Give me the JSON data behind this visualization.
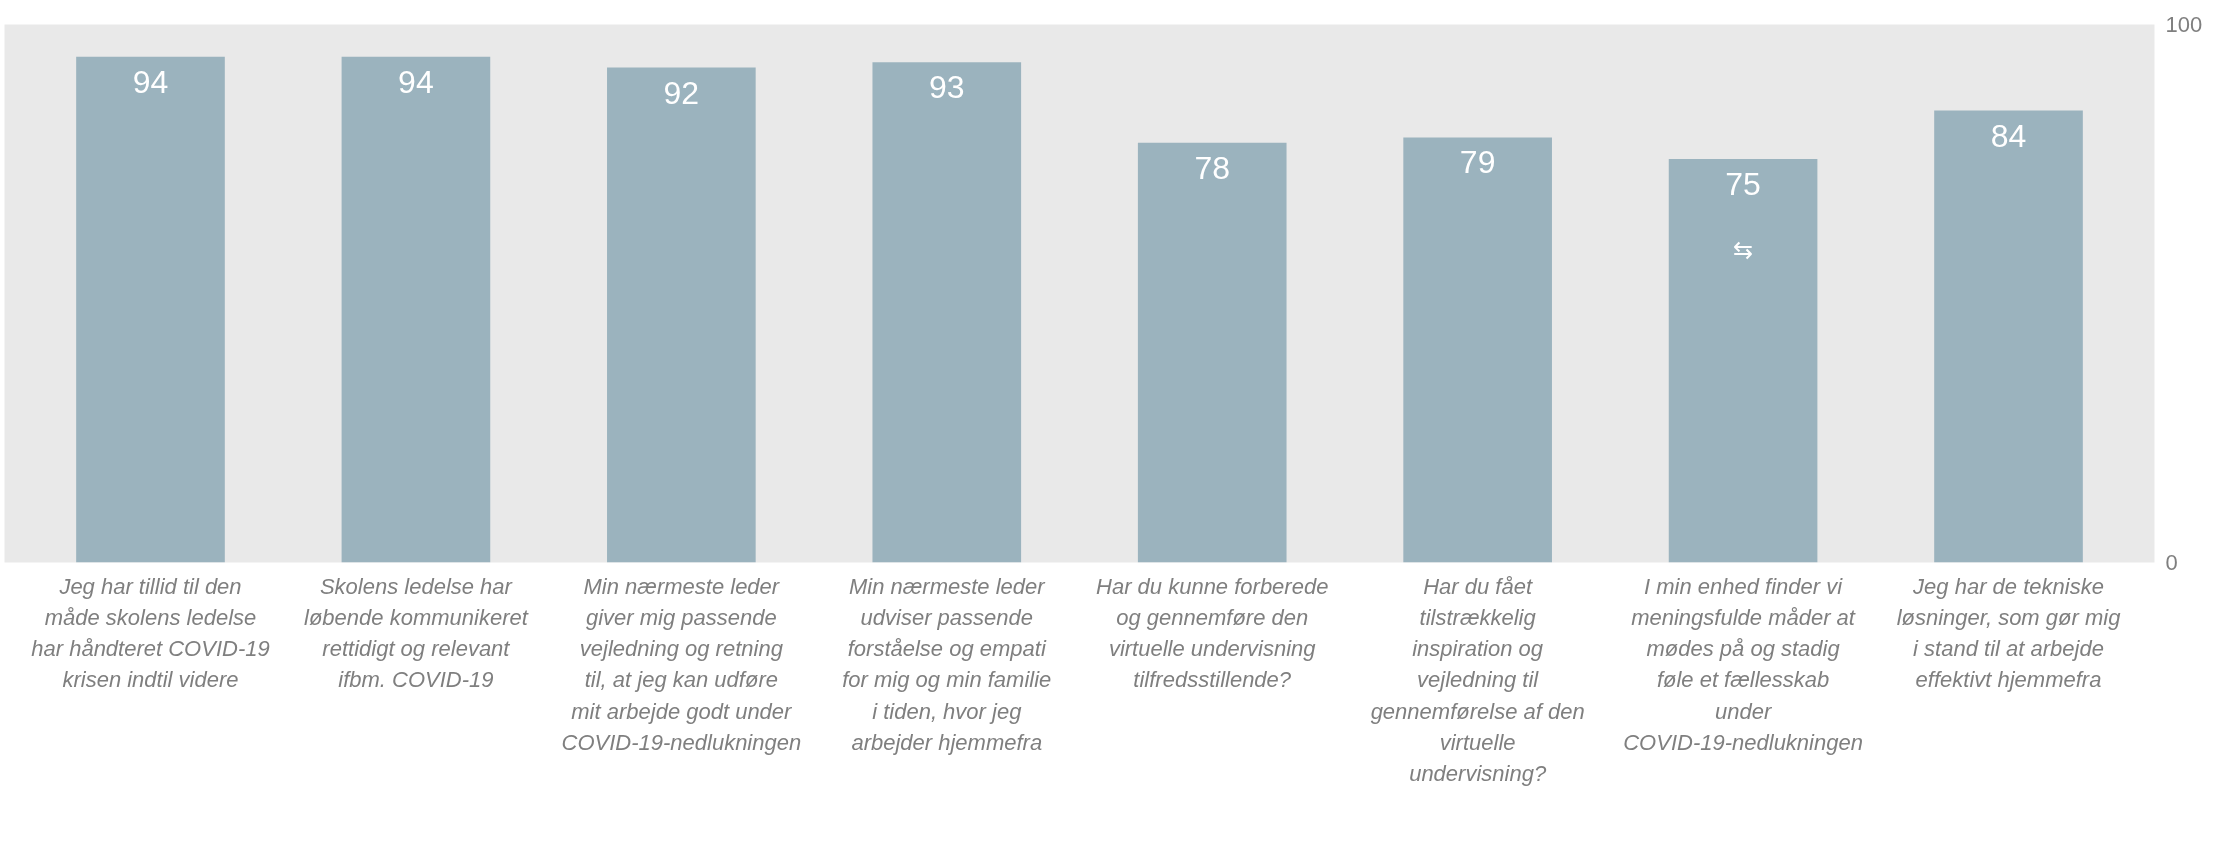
{
  "chart_data": {
    "type": "bar",
    "categories": [
      "Jeg har tillid til den måde skolens ledelse har håndteret COVID-19 krisen indtil videre",
      "Skolens ledelse har løbende kommunikeret rettidigt og relevant ifbm. COVID-19",
      "Min nærmeste leder giver mig passende vejledning og retning til, at jeg kan udføre mit arbejde godt under COVID-19-nedlukningen",
      "Min nærmeste leder udviser passende forståelse og empati for mig og min familie i tiden, hvor jeg arbejder hjemmefra",
      "Har du kunne forberede og gennemføre den virtuelle undervisning tilfredsstillende?",
      "Har du fået tilstrækkelig inspiration og vejledning til gennemførelse af den virtuelle undervisning?",
      "I min enhed finder vi meningsfulde måder at mødes på og stadig føle et fællesskab under COVID-19-nedlukningen",
      "Jeg har de tekniske løsninger, som gør mig i stand til at arbejde effektivt hjemmefra"
    ],
    "values": [
      94,
      94,
      92,
      93,
      78,
      79,
      75,
      84
    ],
    "color": "#9bb3be",
    "data_labels": true,
    "ylim": [
      0,
      100
    ],
    "yticks": [
      0,
      100
    ],
    "annotations": [
      "⇆"
    ]
  }
}
